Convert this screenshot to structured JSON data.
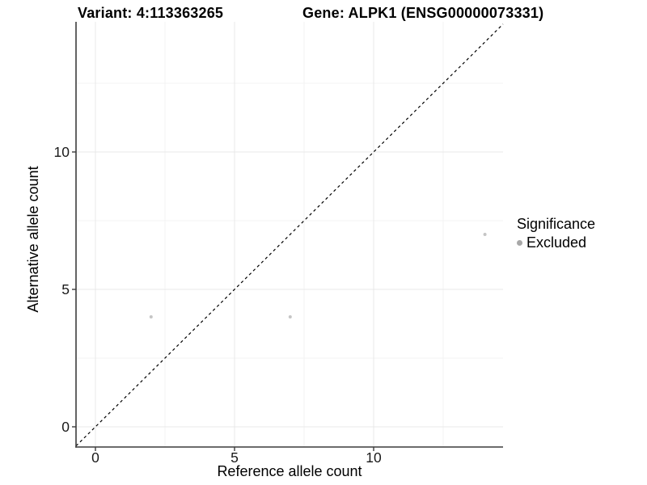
{
  "header": {
    "variant_title": "Variant: 4:113363265",
    "gene_title": "Gene: ALPK1 (ENSG00000073331)"
  },
  "chart_data": {
    "type": "scatter",
    "xlabel": "Reference allele count",
    "ylabel": "Alternative allele count",
    "x_ticks": [
      "0",
      "5",
      "10"
    ],
    "x_tick_values": [
      0,
      5,
      10
    ],
    "y_ticks": [
      "0",
      "5",
      "10"
    ],
    "y_tick_values": [
      0,
      5,
      10
    ],
    "x_minor_gridlines": [
      2.5,
      7.5,
      12.5
    ],
    "y_minor_gridlines": [
      2.5,
      7.5,
      12.5
    ],
    "xlim": [
      -0.7,
      14.65
    ],
    "ylim": [
      -0.74,
      14.74
    ],
    "grid": true,
    "series": [
      {
        "name": "Excluded",
        "points": [
          {
            "x": 2,
            "y": 4
          },
          {
            "x": 7,
            "y": 4
          },
          {
            "x": 14,
            "y": 7
          }
        ]
      }
    ],
    "identity_line": {
      "equation": "y = x",
      "style": "dashed",
      "color": "#000000"
    },
    "legend": {
      "title": "Significance",
      "position": "right",
      "items": [
        {
          "label": "Excluded",
          "color": "#a8a8a8"
        }
      ]
    },
    "colors": {
      "point": "#c5c5c5",
      "axis_line": "#3c3c3c",
      "tick_label": "#1a1a1a",
      "grid_major": "#e9e9e9",
      "grid_minor": "#f3f3f3",
      "background": "#ffffff"
    }
  }
}
